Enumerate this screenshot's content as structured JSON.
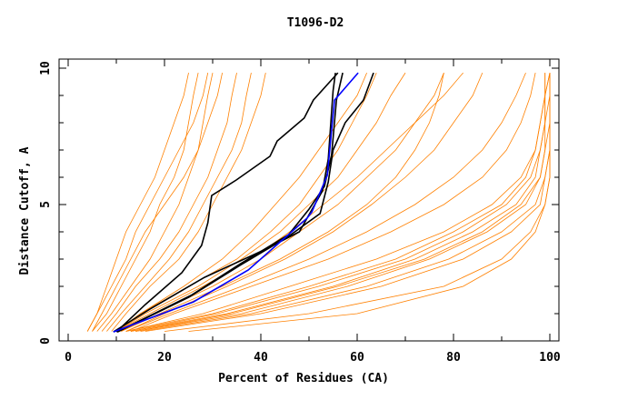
{
  "chart_data": {
    "type": "line",
    "title": "T1096-D2",
    "xlabel": "Percent of Residues (CA)",
    "ylabel": "Distance Cutoff, A",
    "xlim": [
      -2,
      102
    ],
    "ylim": [
      0,
      10.33
    ],
    "xticks": [
      0,
      20,
      40,
      60,
      80,
      100
    ],
    "yticks": [
      0,
      5,
      10
    ],
    "grid": false,
    "legend": "none",
    "colors": {
      "other_models": "#ff8000",
      "highlighted": "#000000",
      "best": "#0000ff"
    },
    "y_levels": [
      0.35,
      1,
      2,
      3,
      4,
      5,
      6,
      7,
      8,
      9,
      9.83
    ],
    "orange_series": [
      [
        4,
        6,
        8,
        10,
        12,
        15,
        18,
        20,
        22,
        24,
        25
      ],
      [
        5,
        8,
        11,
        14,
        17,
        19,
        22,
        24,
        25,
        26,
        27
      ],
      [
        6,
        9,
        13,
        17,
        20,
        23,
        25,
        27,
        28,
        29,
        30
      ],
      [
        5,
        7,
        10,
        13,
        16,
        20,
        24,
        27,
        29,
        31,
        32
      ],
      [
        7,
        10,
        14,
        19,
        23,
        26,
        29,
        31,
        33,
        34,
        35
      ],
      [
        8,
        11,
        16,
        21,
        25,
        28,
        31,
        34,
        36,
        37,
        38
      ],
      [
        4,
        6,
        9,
        12,
        14,
        17,
        20,
        23,
        26,
        28,
        29
      ],
      [
        9,
        12,
        17,
        23,
        27,
        30,
        33,
        36,
        38,
        40,
        41
      ],
      [
        10,
        15,
        24,
        32,
        38,
        43,
        48,
        52,
        56,
        60,
        62
      ],
      [
        10,
        16,
        27,
        36,
        44,
        50,
        56,
        60,
        64,
        67,
        70
      ],
      [
        11,
        18,
        30,
        40,
        48,
        56,
        62,
        68,
        72,
        76,
        78
      ],
      [
        12,
        20,
        33,
        45,
        55,
        63,
        70,
        76,
        80,
        84,
        86
      ],
      [
        10,
        17,
        28,
        38,
        46,
        53,
        60,
        66,
        72,
        78,
        82
      ],
      [
        11,
        19,
        32,
        44,
        54,
        62,
        68,
        72,
        75,
        77,
        78
      ],
      [
        12,
        21,
        36,
        50,
        62,
        72,
        80,
        86,
        90,
        93,
        95
      ],
      [
        13,
        22,
        38,
        54,
        67,
        78,
        86,
        91,
        94,
        96,
        97
      ],
      [
        10,
        15,
        25,
        35,
        42,
        48,
        52,
        56,
        59,
        62,
        64
      ],
      [
        12,
        30,
        50,
        68,
        80,
        90,
        95,
        97,
        98,
        99,
        99
      ],
      [
        13,
        33,
        55,
        72,
        84,
        93,
        97,
        98,
        99,
        99,
        100
      ],
      [
        14,
        36,
        58,
        75,
        87,
        95,
        98,
        99,
        100,
        100,
        100
      ],
      [
        12,
        28,
        46,
        64,
        78,
        88,
        94,
        97,
        98,
        99,
        99
      ],
      [
        15,
        38,
        62,
        79,
        90,
        97,
        99,
        100,
        100,
        100,
        100
      ],
      [
        13,
        31,
        52,
        70,
        82,
        91,
        96,
        98,
        99,
        99,
        100
      ],
      [
        16,
        40,
        65,
        82,
        92,
        98,
        99,
        100,
        100,
        100,
        100
      ],
      [
        14,
        34,
        56,
        74,
        86,
        94,
        98,
        99,
        99,
        100,
        100
      ],
      [
        20,
        50,
        78,
        90,
        96,
        99,
        100,
        100,
        100,
        100,
        100
      ],
      [
        25,
        60,
        82,
        92,
        97,
        99,
        100,
        100,
        100,
        100,
        100
      ]
    ],
    "black_series": [
      [
        [
          10,
          0.33
        ],
        [
          16,
          1.33
        ],
        [
          23.6,
          2.5
        ],
        [
          27.7,
          3.5
        ],
        [
          29,
          4.33
        ],
        [
          29.8,
          5.33
        ],
        [
          34.9,
          5.9
        ],
        [
          41.9,
          6.77
        ],
        [
          43.4,
          7.33
        ],
        [
          49,
          8.17
        ],
        [
          50.9,
          8.83
        ],
        [
          56,
          9.83
        ]
      ],
      [
        [
          9.4,
          0.33
        ],
        [
          17,
          1.17
        ],
        [
          28.3,
          2.33
        ],
        [
          40.6,
          3.33
        ],
        [
          48,
          4
        ],
        [
          52.8,
          5.5
        ],
        [
          54,
          6.67
        ],
        [
          55,
          9.17
        ],
        [
          55.5,
          9.83
        ]
      ],
      [
        [
          10.2,
          0.33
        ],
        [
          25.5,
          1.67
        ],
        [
          35.8,
          2.83
        ],
        [
          45.8,
          3.9
        ],
        [
          50,
          4.83
        ],
        [
          53.2,
          5.67
        ],
        [
          54.7,
          6.83
        ],
        [
          55.7,
          8.83
        ],
        [
          57,
          9.83
        ]
      ],
      [
        [
          10.2,
          0.33
        ],
        [
          25,
          1.6
        ],
        [
          35.5,
          2.75
        ],
        [
          45.5,
          3.8
        ],
        [
          52.3,
          4.67
        ],
        [
          54,
          5.83
        ],
        [
          55,
          7
        ],
        [
          57.5,
          8
        ],
        [
          61.3,
          8.83
        ],
        [
          63.4,
          9.83
        ]
      ]
    ],
    "blue_series": [
      [
        9.4,
        0.33
      ],
      [
        26,
        1.43
      ],
      [
        37.4,
        2.6
      ],
      [
        49.6,
        4.5
      ],
      [
        50.6,
        4.73
      ],
      [
        53.8,
        6.07
      ],
      [
        55.3,
        8.83
      ],
      [
        60.2,
        9.83
      ]
    ]
  }
}
